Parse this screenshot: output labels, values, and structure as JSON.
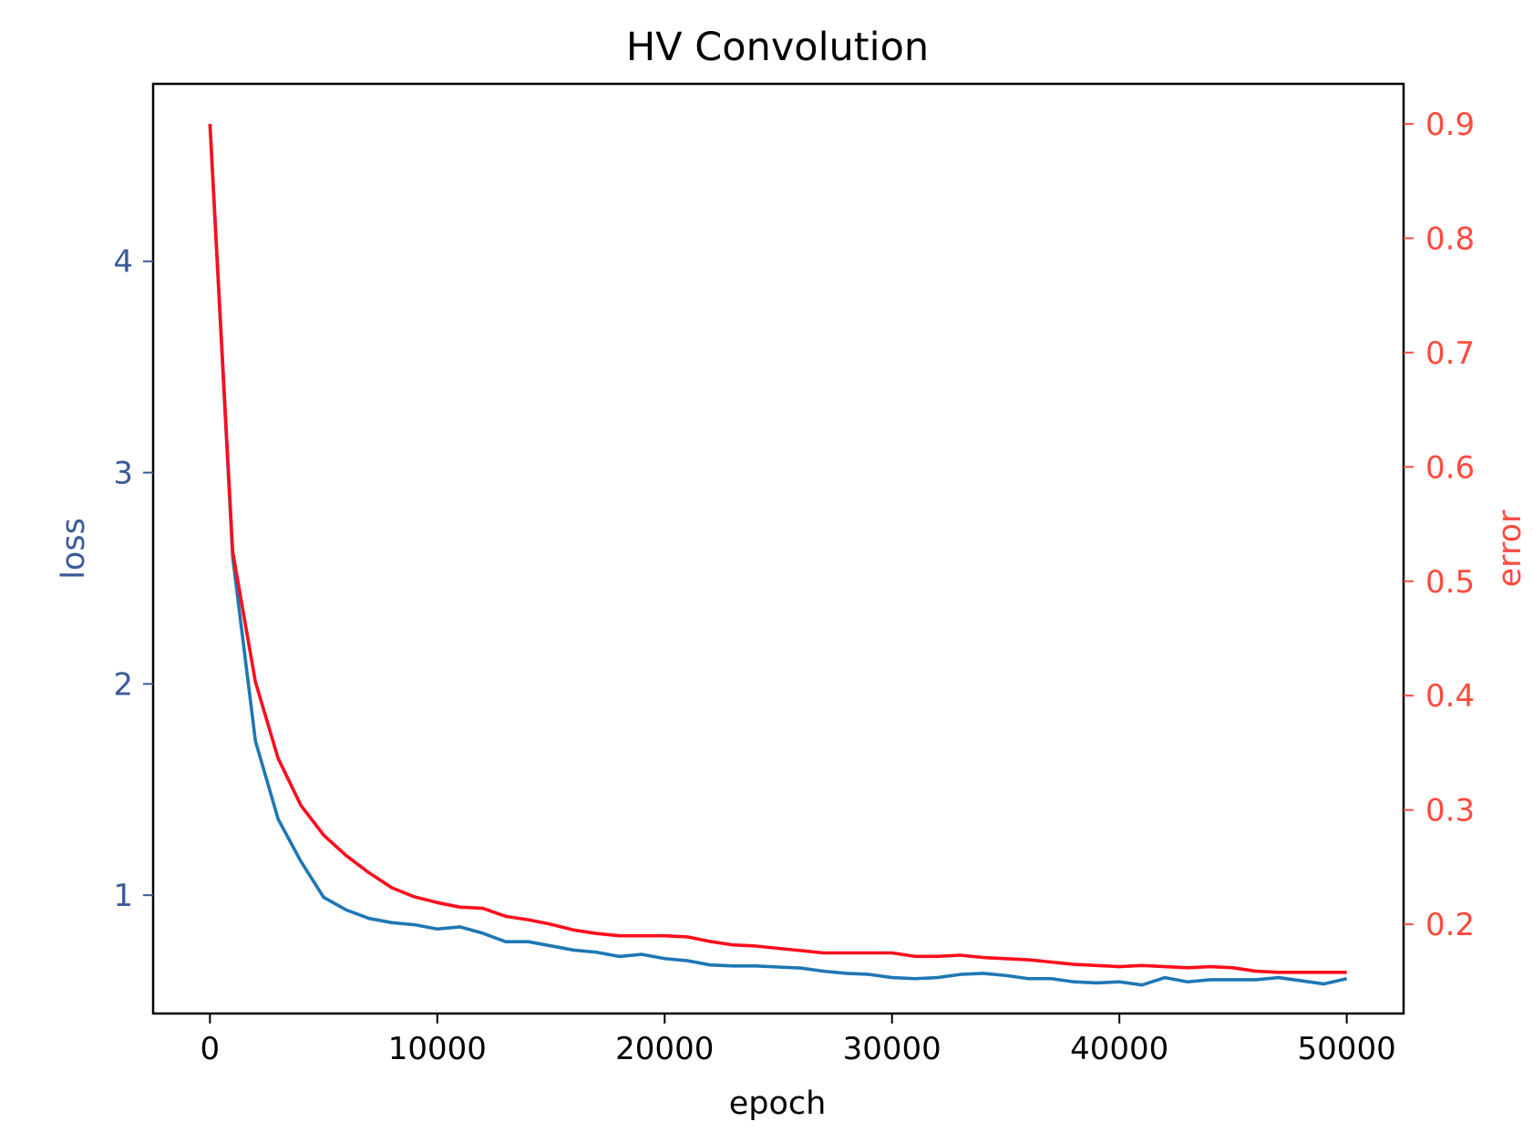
{
  "chart_data": {
    "type": "line",
    "title": "HV Convolution",
    "xlabel": "epoch",
    "ylabel_left": "loss",
    "ylabel_right": "error",
    "xlim": [
      -2500,
      52500
    ],
    "ylim_left": [
      0.44,
      4.84
    ],
    "ylim_right": [
      0.122,
      0.935
    ],
    "x_ticks": [
      0,
      10000,
      20000,
      30000,
      40000,
      50000
    ],
    "x_tick_labels": [
      "0",
      "10000",
      "20000",
      "30000",
      "40000",
      "50000"
    ],
    "y_left_ticks": [
      1,
      2,
      3,
      4
    ],
    "y_left_tick_labels": [
      "1",
      "2",
      "3",
      "4"
    ],
    "y_right_ticks": [
      0.2,
      0.3,
      0.4,
      0.5,
      0.6,
      0.7,
      0.8,
      0.9
    ],
    "y_right_tick_labels": [
      "0.2",
      "0.3",
      "0.4",
      "0.5",
      "0.6",
      "0.7",
      "0.8",
      "0.9"
    ],
    "colors": {
      "loss_line": "#1f77b4",
      "error_line": "#ff0d1d",
      "left_axis_text": "#3b5a9a",
      "right_axis_text": "#ff4b3e",
      "axes": "#000000"
    },
    "grid": false,
    "x": [
      0,
      1000,
      2000,
      3000,
      4000,
      5000,
      6000,
      7000,
      8000,
      9000,
      10000,
      11000,
      12000,
      13000,
      14000,
      15000,
      16000,
      17000,
      18000,
      19000,
      20000,
      21000,
      22000,
      23000,
      24000,
      25000,
      26000,
      27000,
      28000,
      29000,
      30000,
      31000,
      32000,
      33000,
      34000,
      35000,
      36000,
      37000,
      38000,
      39000,
      40000,
      41000,
      42000,
      43000,
      44000,
      45000,
      46000,
      47000,
      48000,
      49000,
      50000
    ],
    "series": [
      {
        "axis": "left",
        "values": [
          4.65,
          2.6,
          1.73,
          1.36,
          1.16,
          0.99,
          0.93,
          0.89,
          0.87,
          0.86,
          0.84,
          0.85,
          0.82,
          0.78,
          0.78,
          0.76,
          0.74,
          0.73,
          0.71,
          0.72,
          0.7,
          0.69,
          0.67,
          0.665,
          0.665,
          0.66,
          0.655,
          0.64,
          0.63,
          0.625,
          0.61,
          0.605,
          0.61,
          0.625,
          0.63,
          0.62,
          0.605,
          0.605,
          0.59,
          0.585,
          0.59,
          0.575,
          0.61,
          0.59,
          0.6,
          0.6,
          0.6,
          0.61,
          0.595,
          0.58,
          0.605
        ]
      },
      {
        "axis": "right",
        "values": [
          0.9,
          0.526,
          0.412,
          0.345,
          0.304,
          0.278,
          0.26,
          0.245,
          0.232,
          0.224,
          0.219,
          0.215,
          0.214,
          0.207,
          0.204,
          0.2,
          0.195,
          0.192,
          0.19,
          0.19,
          0.19,
          0.189,
          0.185,
          0.182,
          0.181,
          0.179,
          0.177,
          0.175,
          0.175,
          0.175,
          0.175,
          0.172,
          0.172,
          0.173,
          0.171,
          0.17,
          0.169,
          0.167,
          0.165,
          0.164,
          0.163,
          0.164,
          0.163,
          0.162,
          0.163,
          0.162,
          0.159,
          0.158,
          0.158,
          0.158,
          0.158
        ]
      }
    ]
  }
}
